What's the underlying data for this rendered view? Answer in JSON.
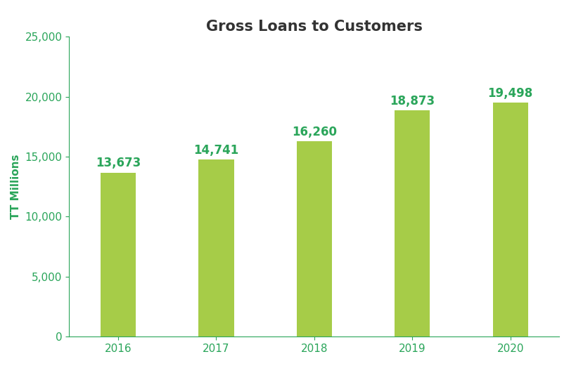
{
  "chart_data": {
    "type": "bar",
    "title": "Gross Loans to Customers",
    "y_label": "TT Millions",
    "categories": [
      "2016",
      "2017",
      "2018",
      "2019",
      "2020"
    ],
    "values": [
      13673,
      14741,
      16260,
      18873,
      19498
    ],
    "value_labels": [
      "13,673",
      "14,741",
      "16,260",
      "18,873",
      "19,498"
    ],
    "data_labels": true,
    "color": "#a6cc48",
    "ylim": [
      0,
      25000
    ],
    "yticks": [
      0,
      {
        "value": 5000,
        "label": "5,000"
      },
      {
        "value": 10000,
        "label": "10,000"
      },
      {
        "value": 15000,
        "label": "15,000"
      },
      {
        "value": 20000,
        "label": "20,000"
      },
      {
        "value": 25000,
        "label": "25,000"
      }
    ],
    "grid": false
  }
}
